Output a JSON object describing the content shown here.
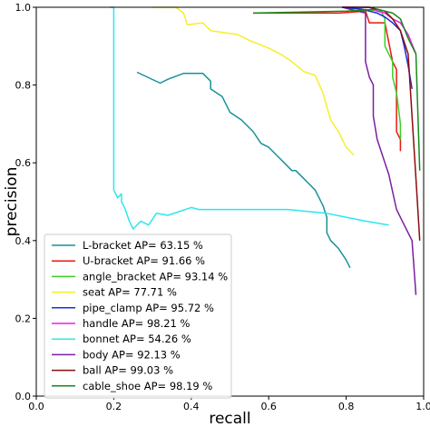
{
  "chart_data": {
    "type": "line",
    "title": "",
    "xlabel": "recall",
    "ylabel": "precision",
    "xlim": [
      0.0,
      1.0
    ],
    "ylim": [
      0.0,
      1.0
    ],
    "xticks": [
      "0.0",
      "0.2",
      "0.4",
      "0.6",
      "0.8",
      "1.0"
    ],
    "yticks": [
      "0.0",
      "0.2",
      "0.4",
      "0.6",
      "0.8",
      "1.0"
    ],
    "grid": false,
    "legend_position": "lower-left",
    "series": [
      {
        "name": "L-bracket",
        "ap_label": "L-bracket AP= 63.15 %",
        "color": "#17929a",
        "x": [
          0.26,
          0.32,
          0.34,
          0.38,
          0.43,
          0.45,
          0.45,
          0.48,
          0.5,
          0.53,
          0.56,
          0.58,
          0.6,
          0.62,
          0.64,
          0.66,
          0.67,
          0.69,
          0.7,
          0.72,
          0.73,
          0.74,
          0.75,
          0.75,
          0.76,
          0.78,
          0.8,
          0.81
        ],
        "y": [
          0.833,
          0.805,
          0.815,
          0.83,
          0.83,
          0.81,
          0.79,
          0.77,
          0.73,
          0.71,
          0.68,
          0.65,
          0.64,
          0.62,
          0.6,
          0.58,
          0.58,
          0.56,
          0.55,
          0.53,
          0.51,
          0.49,
          0.46,
          0.42,
          0.4,
          0.38,
          0.35,
          0.33
        ]
      },
      {
        "name": "U-bracket",
        "ap_label": "U-bracket AP= 91.66 %",
        "color": "#e8190f",
        "x": [
          0.56,
          0.78,
          0.85,
          0.86,
          0.9,
          0.92,
          0.93,
          0.93,
          0.94,
          0.94
        ],
        "y": [
          0.985,
          0.985,
          0.99,
          0.96,
          0.96,
          0.86,
          0.84,
          0.68,
          0.66,
          0.63
        ]
      },
      {
        "name": "angle_bracket",
        "ap_label": "angle_bracket AP= 93.14 %",
        "color": "#3ad02a",
        "x": [
          0.79,
          0.89,
          0.9,
          0.9,
          0.91,
          0.92,
          0.92,
          0.93,
          0.94,
          0.94
        ],
        "y": [
          1.0,
          0.99,
          0.97,
          0.9,
          0.88,
          0.86,
          0.82,
          0.78,
          0.7,
          0.66
        ]
      },
      {
        "name": "seat",
        "ap_label": "seat AP= 77.71 %",
        "color": "#f5ef2a",
        "x": [
          0.3,
          0.36,
          0.38,
          0.39,
          0.43,
          0.45,
          0.52,
          0.55,
          0.6,
          0.63,
          0.66,
          0.69,
          0.72,
          0.74,
          0.76,
          0.78,
          0.8,
          0.82
        ],
        "y": [
          1.0,
          1.0,
          0.985,
          0.955,
          0.96,
          0.94,
          0.93,
          0.915,
          0.895,
          0.88,
          0.86,
          0.835,
          0.825,
          0.78,
          0.71,
          0.68,
          0.64,
          0.62
        ]
      },
      {
        "name": "pipe_clamp",
        "ap_label": "pipe_clamp AP= 95.72 %",
        "color": "#1c2fd6",
        "x": [
          0.79,
          0.84,
          0.86,
          0.88,
          0.9,
          0.92,
          0.94,
          0.95,
          0.96,
          0.97
        ],
        "y": [
          1.0,
          0.995,
          0.99,
          0.985,
          0.975,
          0.96,
          0.94,
          0.9,
          0.85,
          0.79
        ]
      },
      {
        "name": "handle",
        "ap_label": "handle AP= 98.21 %",
        "color": "#ee1fe8",
        "x": [
          0.79,
          0.86,
          0.88,
          0.9,
          0.92,
          0.94,
          0.96,
          0.98
        ],
        "y": [
          1.0,
          1.0,
          0.99,
          0.985,
          0.97,
          0.96,
          0.93,
          0.88
        ]
      },
      {
        "name": "bonnet",
        "ap_label": "bonnet AP= 54.26 %",
        "color": "#2ee6ef",
        "x": [
          0.19,
          0.2,
          0.2,
          0.21,
          0.22,
          0.22,
          0.23,
          0.24,
          0.25,
          0.27,
          0.29,
          0.31,
          0.34,
          0.4,
          0.42,
          0.46,
          0.55,
          0.6,
          0.65,
          0.7,
          0.75,
          0.8,
          0.85,
          0.91
        ],
        "y": [
          1.0,
          1.0,
          0.53,
          0.51,
          0.52,
          0.5,
          0.48,
          0.45,
          0.43,
          0.45,
          0.44,
          0.47,
          0.465,
          0.485,
          0.48,
          0.48,
          0.48,
          0.48,
          0.48,
          0.475,
          0.47,
          0.46,
          0.45,
          0.44
        ]
      },
      {
        "name": "body",
        "ap_label": "body AP= 92.13 %",
        "color": "#7b1ea2",
        "x": [
          0.79,
          0.83,
          0.85,
          0.85,
          0.86,
          0.87,
          0.87,
          0.88,
          0.9,
          0.91,
          0.93,
          0.95,
          0.97,
          0.98
        ],
        "y": [
          1.0,
          0.99,
          0.985,
          0.86,
          0.82,
          0.8,
          0.72,
          0.66,
          0.6,
          0.57,
          0.48,
          0.44,
          0.4,
          0.26
        ]
      },
      {
        "name": "ball",
        "ap_label": "ball AP= 99.03 %",
        "color": "#8c0c10",
        "x": [
          0.79,
          0.86,
          0.9,
          0.92,
          0.94,
          0.96,
          0.97,
          0.98,
          0.99
        ],
        "y": [
          1.0,
          1.0,
          0.99,
          0.97,
          0.94,
          0.88,
          0.72,
          0.56,
          0.4
        ]
      },
      {
        "name": "cable_shoe",
        "ap_label": "cable_shoe AP= 98.19 %",
        "color": "#168a1d",
        "x": [
          0.56,
          0.8,
          0.88,
          0.92,
          0.94,
          0.96,
          0.98,
          0.99
        ],
        "y": [
          0.985,
          0.99,
          0.995,
          0.985,
          0.97,
          0.92,
          0.88,
          0.58
        ]
      }
    ]
  }
}
